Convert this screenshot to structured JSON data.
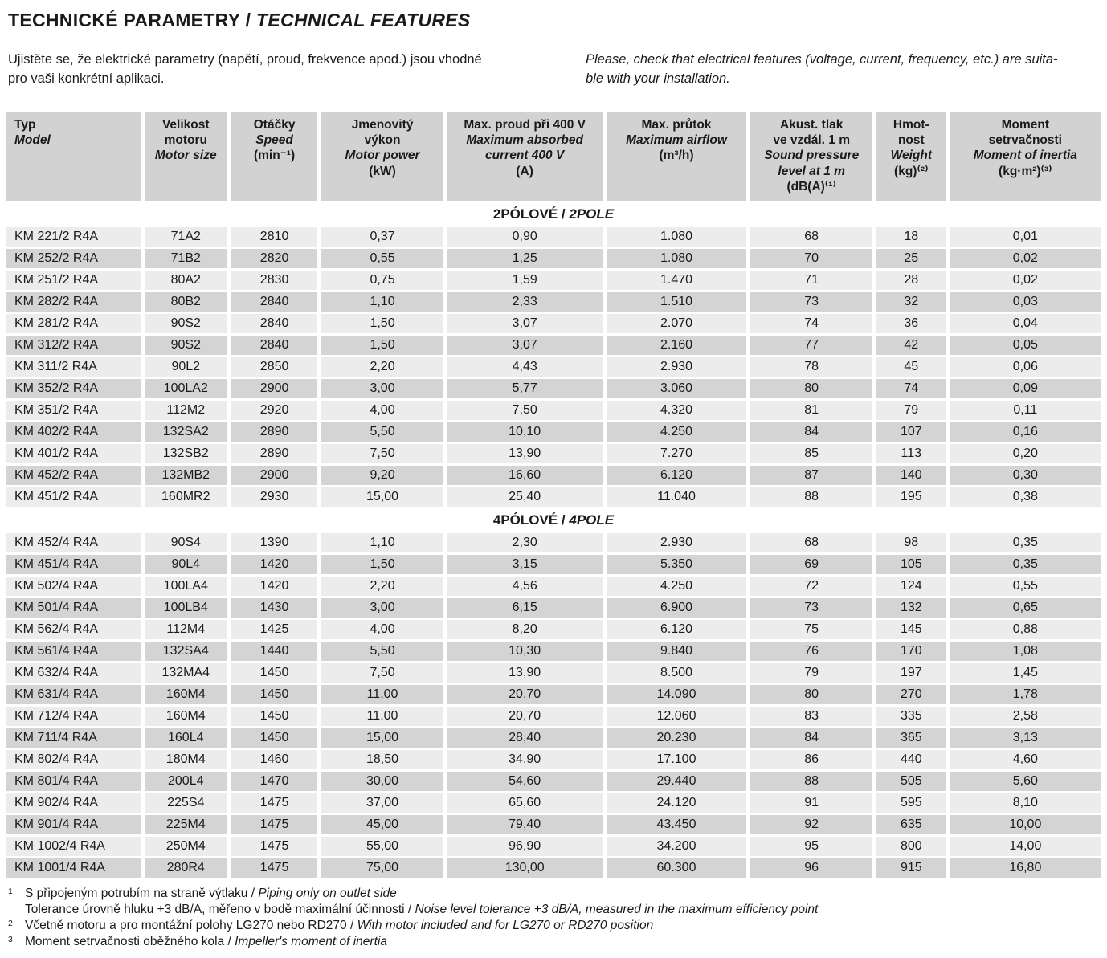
{
  "page": {
    "title_cz": "TECHNICKÉ PARAMETRY",
    "sep": " / ",
    "title_en": "TECHNICAL FEATURES",
    "intro_cz": "Ujistěte se, že elektrické parametry (napětí, proud, frekvence apod.) jsou vhodné\npro vaši konkrétní aplikaci.",
    "intro_en": "Please, check that electrical features (voltage, current, frequency, etc.) are suita-\nble with your installation."
  },
  "colors": {
    "header_bg": "#d2d2d2",
    "row_light": "#ececec",
    "row_dark": "#d4d4d4",
    "text": "#1a1a1a"
  },
  "table": {
    "columns": [
      {
        "align": "left",
        "cz": [
          "Typ"
        ],
        "en": [
          "Model"
        ],
        "unit": ""
      },
      {
        "cz": [
          "Velikost",
          "motoru"
        ],
        "en": [
          "Motor size"
        ],
        "unit": ""
      },
      {
        "cz": [
          "Otáčky"
        ],
        "en": [
          "Speed"
        ],
        "unit": "(min⁻¹)"
      },
      {
        "cz": [
          "Jmenovitý",
          "výkon"
        ],
        "en": [
          "Motor power"
        ],
        "unit": "(kW)"
      },
      {
        "cz": [
          "Max. proud při 400 V"
        ],
        "en": [
          "Maximum absorbed",
          "current 400 V"
        ],
        "unit": "(A)"
      },
      {
        "cz": [
          "Max. průtok"
        ],
        "en": [
          "Maximum airflow"
        ],
        "unit": "(m³/h)"
      },
      {
        "cz": [
          "Akust. tlak",
          "ve vzdál. 1 m"
        ],
        "en": [
          "Sound pressure",
          "level at 1 m"
        ],
        "unit": "(dB(A)⁽¹⁾"
      },
      {
        "cz": [
          "Hmot-",
          "nost"
        ],
        "en": [
          "Weight"
        ],
        "unit": "(kg)⁽²⁾"
      },
      {
        "cz": [
          "Moment",
          "setrvačnosti"
        ],
        "en": [
          "Moment of inertia"
        ],
        "unit": "(kg·m²)⁽³⁾"
      }
    ],
    "sections": [
      {
        "label_cz": "2PÓLOVÉ",
        "label_en": "2POLE",
        "rows": [
          [
            "KM 221/2 R4A",
            "71A2",
            "2810",
            "0,37",
            "0,90",
            "1.080",
            "68",
            "18",
            "0,01"
          ],
          [
            "KM 252/2 R4A",
            "71B2",
            "2820",
            "0,55",
            "1,25",
            "1.080",
            "70",
            "25",
            "0,02"
          ],
          [
            "KM 251/2 R4A",
            "80A2",
            "2830",
            "0,75",
            "1,59",
            "1.470",
            "71",
            "28",
            "0,02"
          ],
          [
            "KM 282/2 R4A",
            "80B2",
            "2840",
            "1,10",
            "2,33",
            "1.510",
            "73",
            "32",
            "0,03"
          ],
          [
            "KM 281/2 R4A",
            "90S2",
            "2840",
            "1,50",
            "3,07",
            "2.070",
            "74",
            "36",
            "0,04"
          ],
          [
            "KM 312/2 R4A",
            "90S2",
            "2840",
            "1,50",
            "3,07",
            "2.160",
            "77",
            "42",
            "0,05"
          ],
          [
            "KM 311/2 R4A",
            "90L2",
            "2850",
            "2,20",
            "4,43",
            "2.930",
            "78",
            "45",
            "0,06"
          ],
          [
            "KM 352/2 R4A",
            "100LA2",
            "2900",
            "3,00",
            "5,77",
            "3.060",
            "80",
            "74",
            "0,09"
          ],
          [
            "KM 351/2 R4A",
            "112M2",
            "2920",
            "4,00",
            "7,50",
            "4.320",
            "81",
            "79",
            "0,11"
          ],
          [
            "KM 402/2 R4A",
            "132SA2",
            "2890",
            "5,50",
            "10,10",
            "4.250",
            "84",
            "107",
            "0,16"
          ],
          [
            "KM 401/2 R4A",
            "132SB2",
            "2890",
            "7,50",
            "13,90",
            "7.270",
            "85",
            "113",
            "0,20"
          ],
          [
            "KM 452/2 R4A",
            "132MB2",
            "2900",
            "9,20",
            "16,60",
            "6.120",
            "87",
            "140",
            "0,30"
          ],
          [
            "KM 451/2 R4A",
            "160MR2",
            "2930",
            "15,00",
            "25,40",
            "11.040",
            "88",
            "195",
            "0,38"
          ]
        ]
      },
      {
        "label_cz": "4PÓLOVÉ",
        "label_en": "4POLE",
        "rows": [
          [
            "KM 452/4 R4A",
            "90S4",
            "1390",
            "1,10",
            "2,30",
            "2.930",
            "68",
            "98",
            "0,35"
          ],
          [
            "KM 451/4 R4A",
            "90L4",
            "1420",
            "1,50",
            "3,15",
            "5.350",
            "69",
            "105",
            "0,35"
          ],
          [
            "KM 502/4 R4A",
            "100LA4",
            "1420",
            "2,20",
            "4,56",
            "4.250",
            "72",
            "124",
            "0,55"
          ],
          [
            "KM 501/4 R4A",
            "100LB4",
            "1430",
            "3,00",
            "6,15",
            "6.900",
            "73",
            "132",
            "0,65"
          ],
          [
            "KM 562/4 R4A",
            "112M4",
            "1425",
            "4,00",
            "8,20",
            "6.120",
            "75",
            "145",
            "0,88"
          ],
          [
            "KM 561/4 R4A",
            "132SA4",
            "1440",
            "5,50",
            "10,30",
            "9.840",
            "76",
            "170",
            "1,08"
          ],
          [
            "KM 632/4 R4A",
            "132MA4",
            "1450",
            "7,50",
            "13,90",
            "8.500",
            "79",
            "197",
            "1,45"
          ],
          [
            "KM 631/4 R4A",
            "160M4",
            "1450",
            "11,00",
            "20,70",
            "14.090",
            "80",
            "270",
            "1,78"
          ],
          [
            "KM 712/4 R4A",
            "160M4",
            "1450",
            "11,00",
            "20,70",
            "12.060",
            "83",
            "335",
            "2,58"
          ],
          [
            "KM 711/4 R4A",
            "160L4",
            "1450",
            "15,00",
            "28,40",
            "20.230",
            "84",
            "365",
            "3,13"
          ],
          [
            "KM 802/4 R4A",
            "180M4",
            "1460",
            "18,50",
            "34,90",
            "17.100",
            "86",
            "440",
            "4,60"
          ],
          [
            "KM 801/4 R4A",
            "200L4",
            "1470",
            "30,00",
            "54,60",
            "29.440",
            "88",
            "505",
            "5,60"
          ],
          [
            "KM 902/4 R4A",
            "225S4",
            "1475",
            "37,00",
            "65,60",
            "24.120",
            "91",
            "595",
            "8,10"
          ],
          [
            "KM 901/4 R4A",
            "225M4",
            "1475",
            "45,00",
            "79,40",
            "43.450",
            "92",
            "635",
            "10,00"
          ],
          [
            "KM 1002/4 R4A",
            "250M4",
            "1475",
            "55,00",
            "96,90",
            "34.200",
            "95",
            "800",
            "14,00"
          ],
          [
            "KM 1001/4 R4A",
            "280R4",
            "1475",
            "75,00",
            "130,00",
            "60.300",
            "96",
            "915",
            "16,80"
          ]
        ]
      }
    ]
  },
  "footnotes": [
    {
      "marker": "1",
      "lines": [
        {
          "cz": "S připojeným potrubím na straně výtlaku",
          "en": "Piping only on outlet side"
        },
        {
          "cz": "Tolerance úrovně hluku +3 dB/A, měřeno v bodě maximální účinnosti",
          "en": "Noise level tolerance +3 dB/A, measured in the maximum efficiency point"
        }
      ]
    },
    {
      "marker": "2",
      "lines": [
        {
          "cz": "Včetně motoru a pro montážní polohy LG270 nebo RD270",
          "en": "With motor included and for LG270 or RD270 position"
        }
      ]
    },
    {
      "marker": "3",
      "lines": [
        {
          "cz": "Moment setrvačnosti oběžného kola",
          "en": "Impeller's moment of inertia"
        }
      ]
    }
  ]
}
